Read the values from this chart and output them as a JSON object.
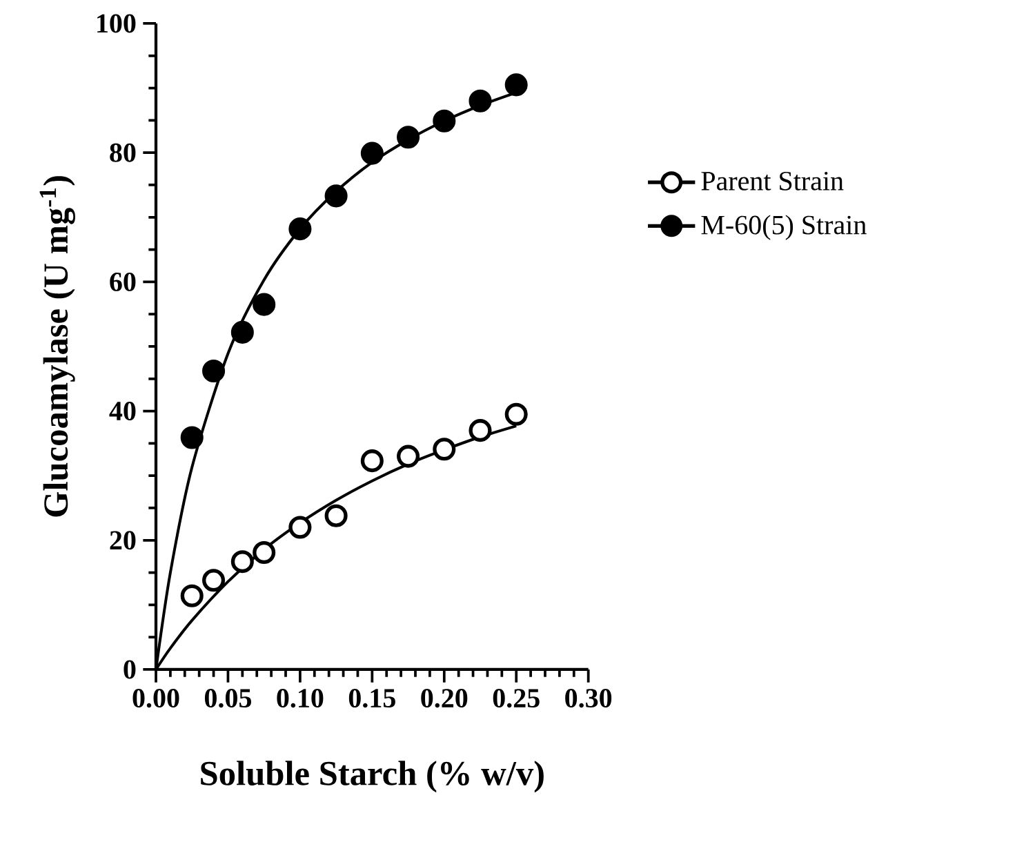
{
  "chart_data": {
    "type": "scatter",
    "xlabel": "Soluble Starch (% w/v)",
    "ylabel": "Glucoamylase (U mg$^{-1}$)",
    "xlim": [
      0,
      0.3
    ],
    "ylim": [
      0,
      100
    ],
    "xticks": [
      {
        "value": 0,
        "label": "0.00"
      },
      {
        "value": 0.05,
        "label": "0.05"
      },
      {
        "value": 0.1,
        "label": "0.10"
      },
      {
        "value": 0.15,
        "label": "0.15"
      },
      {
        "value": 0.2,
        "label": "0.20"
      },
      {
        "value": 0.25,
        "label": "0.25"
      },
      {
        "value": 0.3,
        "label": "0.30"
      }
    ],
    "yticks": [
      0,
      20,
      40,
      60,
      80,
      100
    ],
    "grid": false,
    "legend": "right",
    "marker": "circle",
    "x": [
      0.025,
      0.04,
      0.06,
      0.075,
      0.1,
      0.125,
      0.15,
      0.175,
      0.2,
      0.225,
      0.25
    ],
    "series": [
      {
        "name": "Parent Strain",
        "color": "#ffffff",
        "values": [
          11.4,
          13.8,
          16.7,
          18.1,
          22.0,
          23.8,
          32.3,
          33.0,
          34.1,
          37.0,
          39.5
        ]
      },
      {
        "name": "M-60(5) Strain",
        "color": "#000000",
        "values": [
          35.9,
          46.2,
          52.2,
          56.5,
          68.2,
          73.3,
          79.9,
          82.4,
          84.9,
          88.0,
          90.5
        ]
      },
      {
        "type": "line",
        "color": "#000000",
        "marker": "none",
        "line_style": "solid",
        "x": [
          0,
          0.01,
          0.025,
          0.05,
          0.075,
          0.1,
          0.125,
          0.15,
          0.175,
          0.2,
          0.225,
          0.25
        ],
        "values": [
          0,
          3.3,
          7.6,
          13.6,
          18.6,
          22.7,
          26.2,
          29.2,
          31.8,
          34.0,
          36.0,
          37.7
        ]
      },
      {
        "type": "line",
        "color": "#000000",
        "marker": "none",
        "line_style": "solid",
        "x": [
          0,
          0.01,
          0.025,
          0.05,
          0.075,
          0.1,
          0.125,
          0.15,
          0.175,
          0.2,
          0.225,
          0.25
        ],
        "values": [
          0,
          15.0,
          31.3,
          48.9,
          60.3,
          68.2,
          74.0,
          78.5,
          82.0,
          84.9,
          87.3,
          89.3
        ]
      }
    ]
  }
}
